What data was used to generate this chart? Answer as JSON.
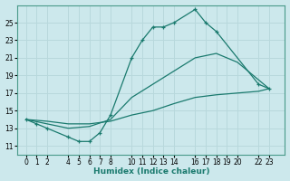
{
  "xlabel": "Humidex (Indice chaleur)",
  "bg_color": "#cce8ec",
  "grid_color": "#b8d8dc",
  "line_color": "#1a7a6e",
  "xticks": [
    0,
    1,
    2,
    4,
    5,
    6,
    7,
    8,
    10,
    11,
    12,
    13,
    14,
    16,
    17,
    18,
    19,
    20,
    22,
    23
  ],
  "xticklabels": [
    "0",
    "1",
    "2",
    "4",
    "5",
    "6",
    "7",
    "8",
    "10",
    "11",
    "12",
    "13",
    "14",
    "16",
    "17",
    "18",
    "19",
    "20",
    "22",
    "23"
  ],
  "yticks": [
    11,
    13,
    15,
    17,
    19,
    21,
    23,
    25
  ],
  "xlim": [
    -0.8,
    24.5
  ],
  "ylim": [
    10.0,
    27.0
  ],
  "line1_x": [
    0,
    1,
    2,
    4,
    5,
    6,
    7,
    8,
    10,
    11,
    12,
    13,
    14,
    16,
    17,
    18,
    22,
    23
  ],
  "line1_y": [
    14.0,
    13.5,
    13.0,
    12.0,
    11.5,
    11.5,
    12.5,
    14.5,
    21.0,
    23.0,
    24.5,
    24.5,
    25.0,
    26.5,
    25.0,
    24.0,
    18.0,
    17.5
  ],
  "line2_x": [
    0,
    2,
    4,
    6,
    8,
    10,
    12,
    14,
    16,
    18,
    20,
    22,
    23
  ],
  "line2_y": [
    14.0,
    13.5,
    13.0,
    13.2,
    14.0,
    16.5,
    18.0,
    19.5,
    21.0,
    21.5,
    20.5,
    18.5,
    17.5
  ],
  "line3_x": [
    0,
    2,
    4,
    6,
    8,
    10,
    12,
    14,
    16,
    18,
    20,
    22,
    23
  ],
  "line3_y": [
    14.0,
    13.8,
    13.5,
    13.5,
    13.8,
    14.5,
    15.0,
    15.8,
    16.5,
    16.8,
    17.0,
    17.2,
    17.5
  ]
}
